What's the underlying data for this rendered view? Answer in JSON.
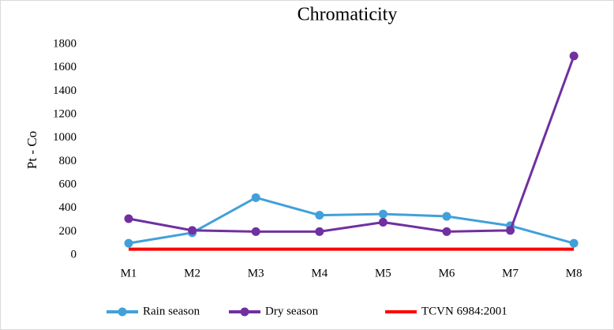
{
  "chart_data": {
    "type": "line",
    "title": "Chromaticity",
    "ylabel": "Pt - Co",
    "categories": [
      "M1",
      "M2",
      "M3",
      "M4",
      "M5",
      "M6",
      "M7",
      "M8"
    ],
    "series": [
      {
        "name": "Rain season",
        "color": "#41a0da",
        "markers": true,
        "values": [
          100,
          190,
          490,
          340,
          350,
          330,
          250,
          100
        ]
      },
      {
        "name": "Dry season",
        "color": "#7030a0",
        "markers": true,
        "values": [
          310,
          210,
          200,
          200,
          280,
          200,
          210,
          1700
        ]
      },
      {
        "name": "TCVN 6984:2001",
        "color": "#ff0000",
        "markers": false,
        "values": [
          50,
          50,
          50,
          50,
          50,
          50,
          50,
          50
        ]
      }
    ],
    "ylim": [
      0,
      1800
    ],
    "yticks": [
      0,
      200,
      400,
      600,
      800,
      1000,
      1200,
      1400,
      1600,
      1800
    ],
    "grid": false,
    "legend": "bottom"
  }
}
